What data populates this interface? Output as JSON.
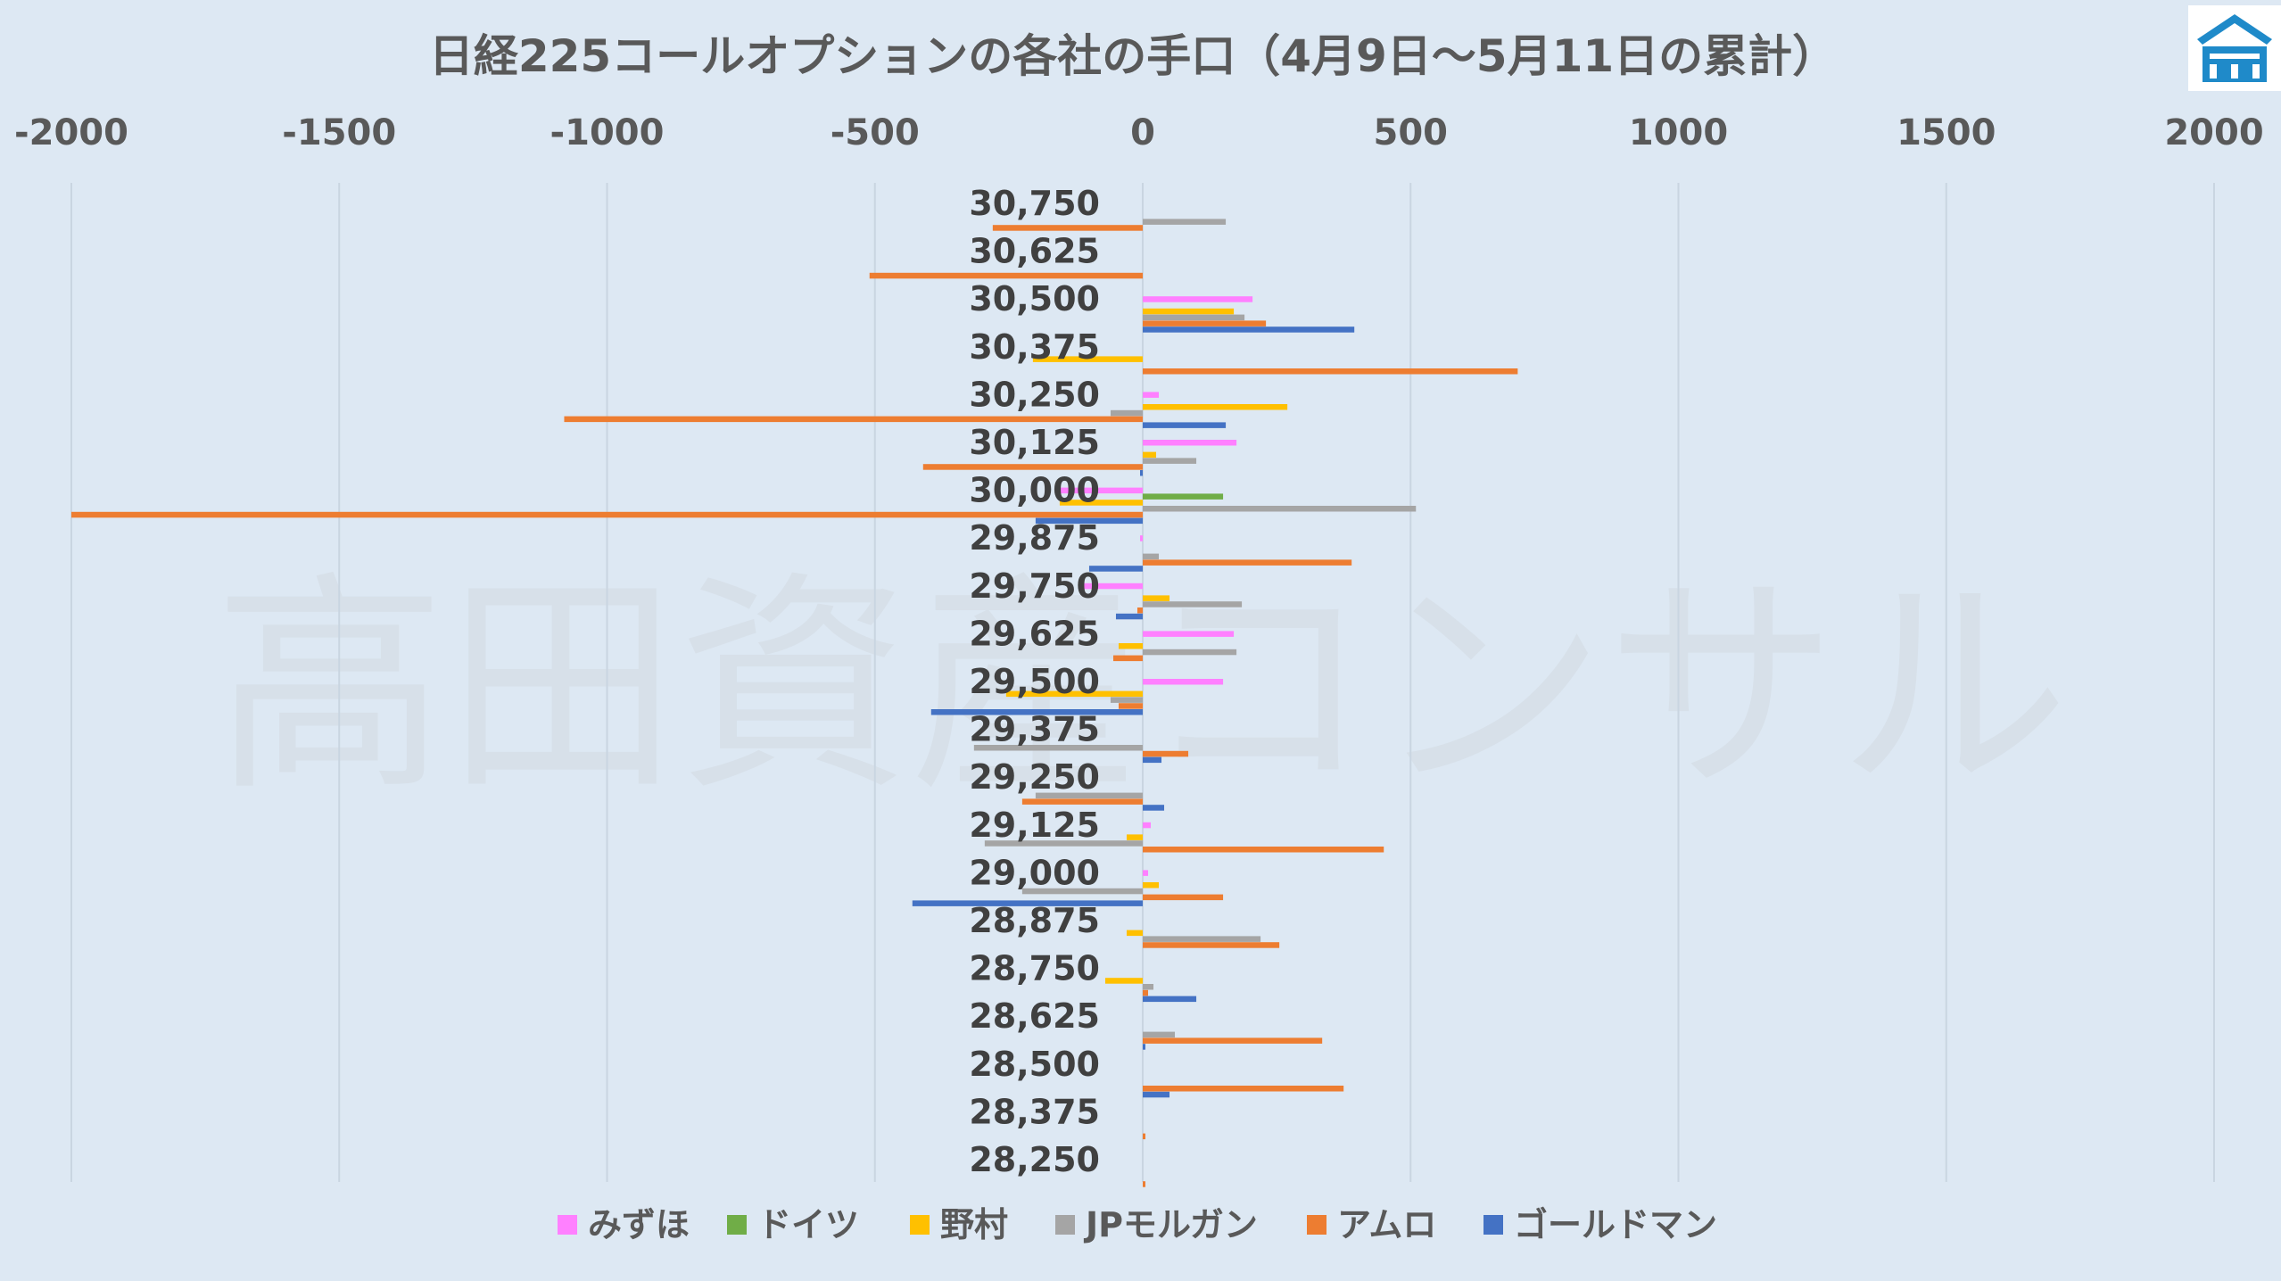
{
  "chart_data": {
    "type": "bar",
    "orientation": "horizontal",
    "title": "日経225コールオプションの各社の手口（4月9日～5月11日の累計）",
    "watermark": "高田資産コンサル",
    "xlim": [
      -2000,
      2000
    ],
    "xticks": [
      -2000,
      -1500,
      -1000,
      -500,
      0,
      500,
      1000,
      1500,
      2000
    ],
    "xtick_labels": [
      "-2000",
      "-1500",
      "-1000",
      "-500",
      "0",
      "500",
      "1000",
      "1500",
      "2000"
    ],
    "axis_position": "top",
    "grid": true,
    "legend_position": "bottom",
    "categories": [
      "30,750",
      "30,625",
      "30,500",
      "30,375",
      "30,250",
      "30,125",
      "30,000",
      "29,875",
      "29,750",
      "29,625",
      "29,500",
      "29,375",
      "29,250",
      "29,125",
      "29,000",
      "28,875",
      "28,750",
      "28,625",
      "28,500",
      "28,375",
      "28,250"
    ],
    "series": [
      {
        "name": "みずほ",
        "color": "#ff80ff",
        "values": [
          0,
          0,
          205,
          0,
          30,
          175,
          -155,
          -5,
          -110,
          170,
          150,
          0,
          0,
          15,
          10,
          0,
          0,
          0,
          0,
          0,
          0
        ]
      },
      {
        "name": "ドイツ",
        "color": "#70ad47",
        "values": [
          0,
          0,
          0,
          0,
          0,
          0,
          150,
          0,
          0,
          0,
          0,
          0,
          0,
          0,
          0,
          0,
          0,
          0,
          0,
          0,
          0
        ]
      },
      {
        "name": "野村",
        "color": "#ffc000",
        "values": [
          0,
          0,
          170,
          -205,
          270,
          25,
          -155,
          0,
          50,
          -45,
          -255,
          0,
          0,
          -30,
          30,
          -30,
          -70,
          0,
          0,
          0,
          0
        ]
      },
      {
        "name": "JPモルガン",
        "color": "#a5a5a5",
        "values": [
          155,
          0,
          190,
          0,
          -60,
          100,
          510,
          30,
          185,
          175,
          -60,
          -315,
          -200,
          -295,
          -225,
          220,
          20,
          60,
          0,
          0,
          0
        ]
      },
      {
        "name": "アムロ",
        "color": "#ed7d31",
        "values": [
          -280,
          -510,
          230,
          700,
          -1080,
          -410,
          -2000,
          390,
          -10,
          -55,
          -45,
          85,
          -225,
          450,
          150,
          255,
          10,
          335,
          375,
          5,
          5
        ]
      },
      {
        "name": "ゴールドマン",
        "color": "#4472c4",
        "values": [
          0,
          0,
          395,
          0,
          155,
          -5,
          -200,
          -100,
          -50,
          0,
          -395,
          35,
          40,
          0,
          -430,
          0,
          100,
          5,
          50,
          0,
          0
        ]
      }
    ]
  },
  "logo": {
    "name": "company-logo",
    "color": "#1f8ac9"
  }
}
